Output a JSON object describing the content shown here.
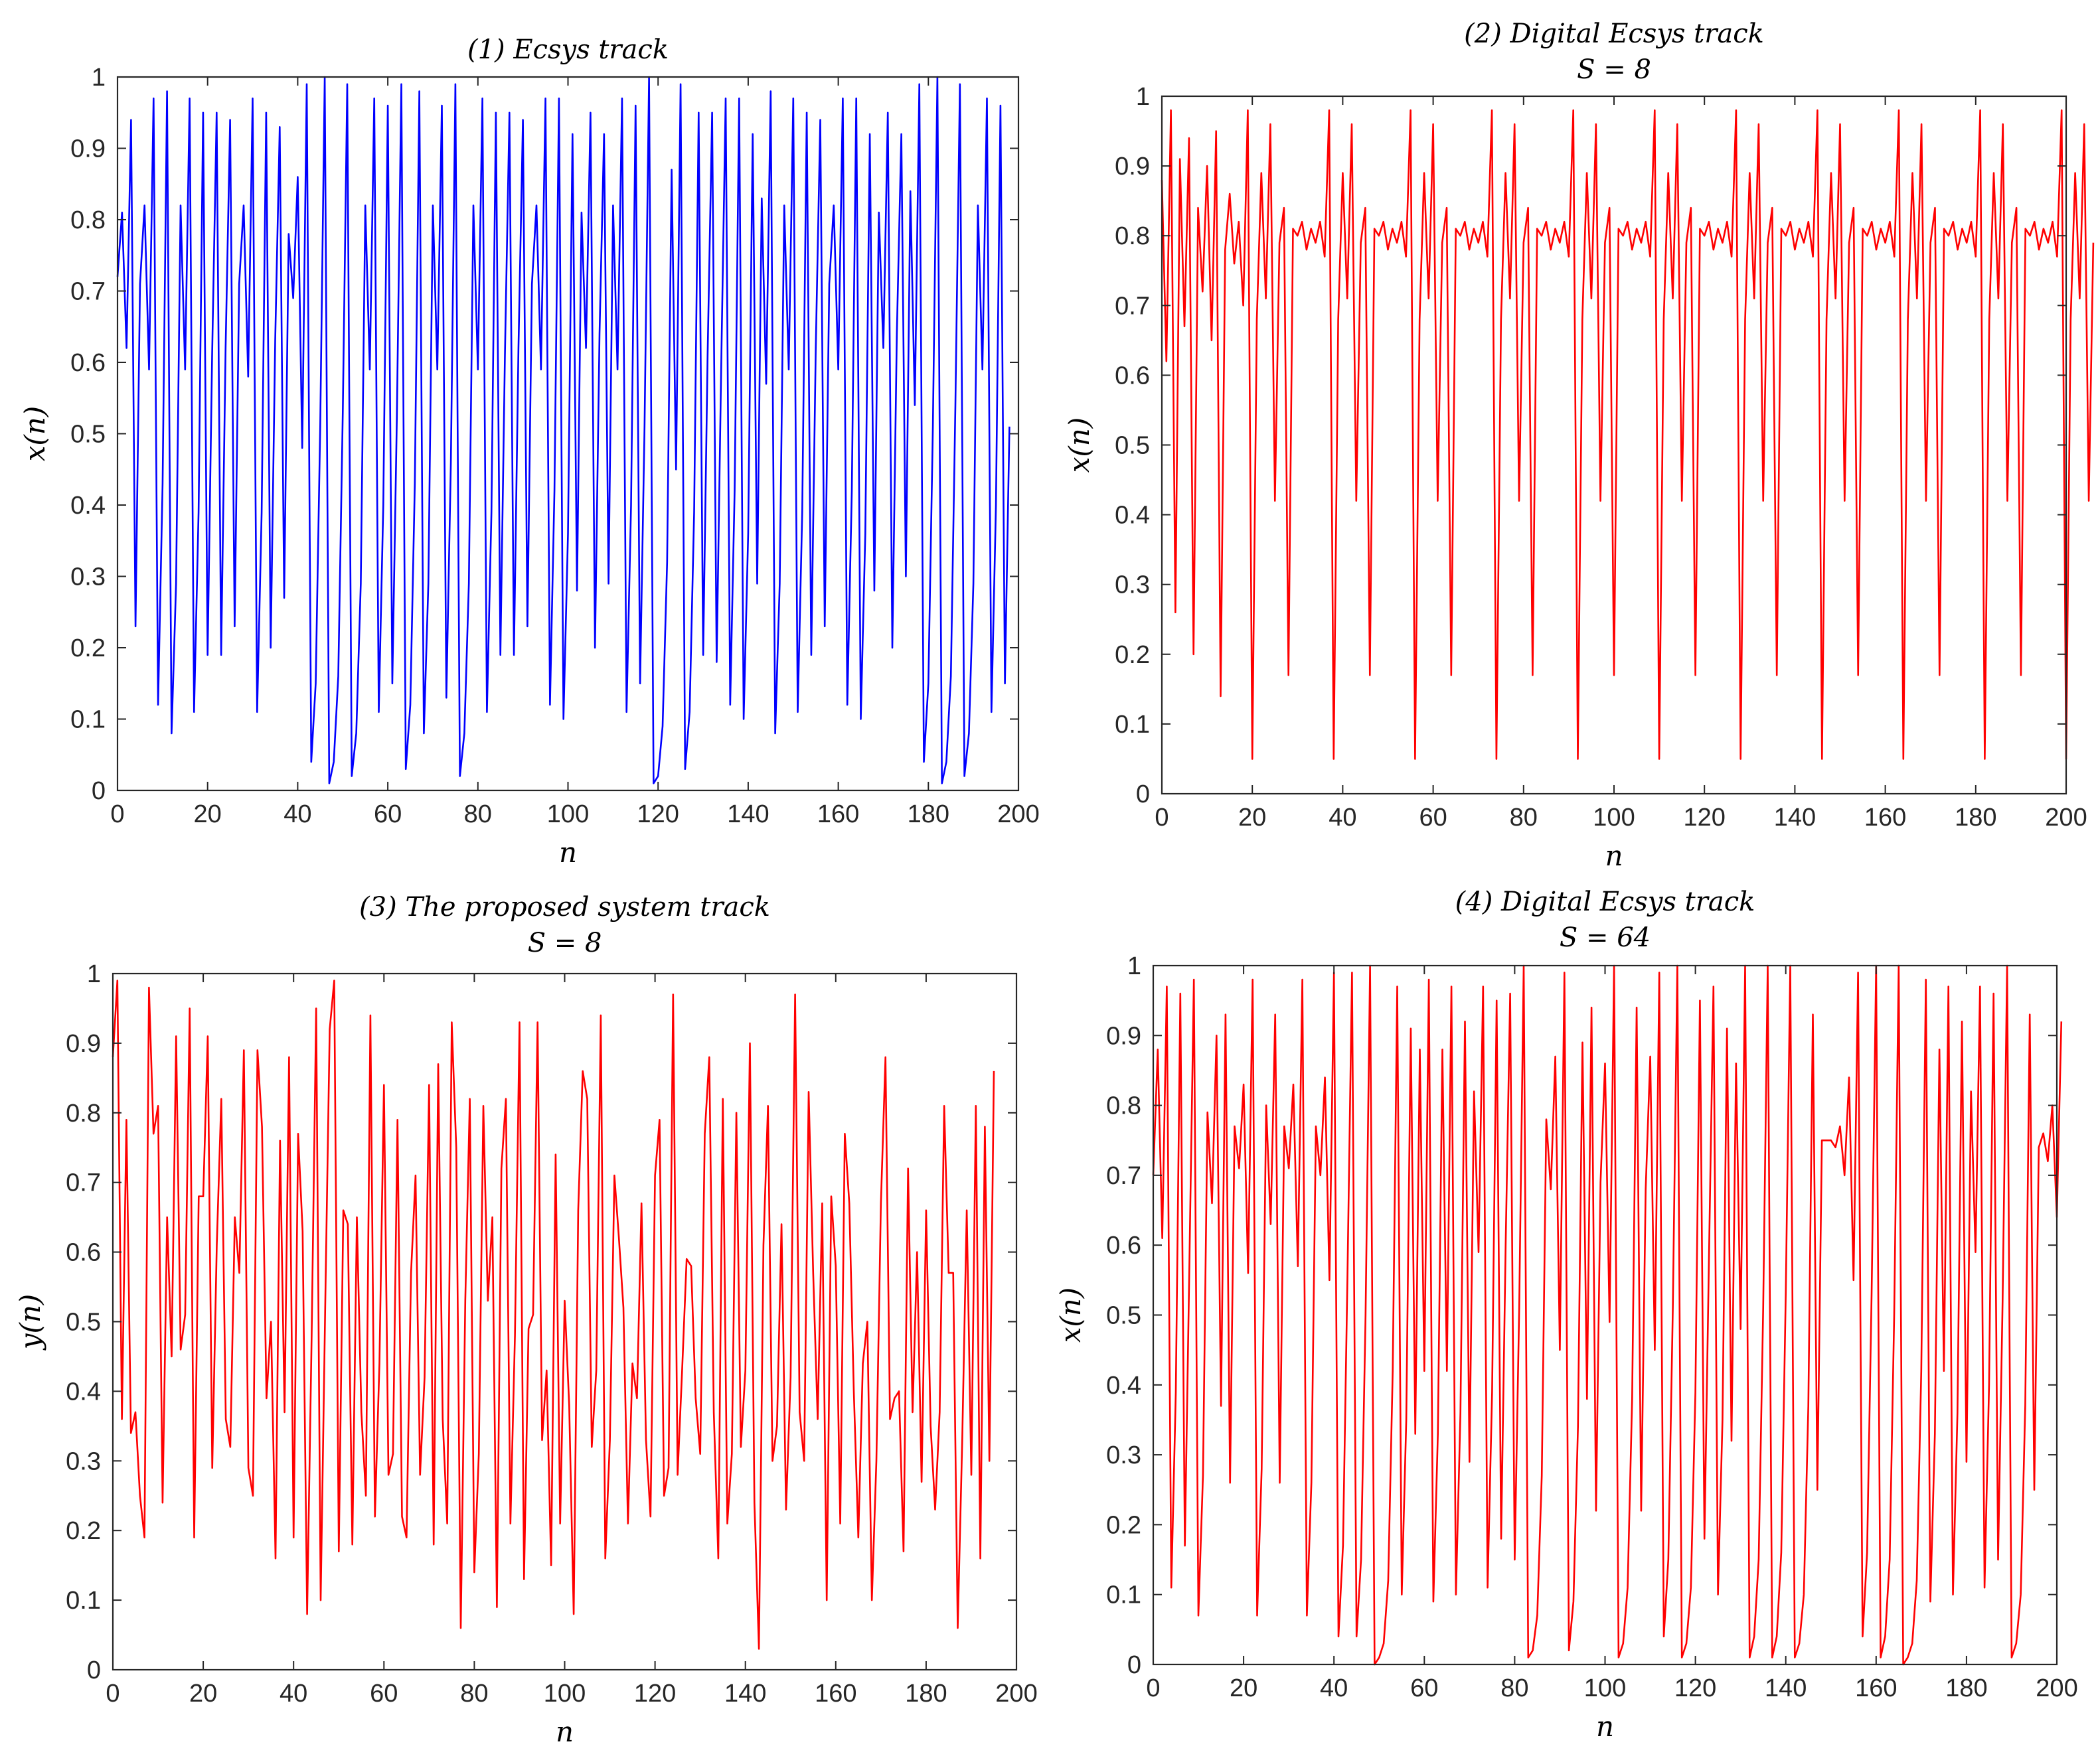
{
  "chart_data": [
    {
      "id": "p1",
      "type": "line",
      "title_lines": [
        "(1)   Ecsys   track"
      ],
      "xlabel": "n",
      "ylabel": "x(n)",
      "xlim": [
        0,
        200
      ],
      "ylim": [
        0,
        1
      ],
      "xticks": [
        0,
        20,
        40,
        60,
        80,
        100,
        120,
        140,
        160,
        180,
        200
      ],
      "yticks": [
        0,
        0.1,
        0.2,
        0.3,
        0.4,
        0.5,
        0.6,
        0.7,
        0.8,
        0.9,
        1
      ],
      "line_color": "#0000ff",
      "series": [
        {
          "name": "Ecsys",
          "x_start": 0,
          "values": [
            0.72,
            0.81,
            0.62,
            0.94,
            0.23,
            0.71,
            0.82,
            0.59,
            0.97,
            0.12,
            0.43,
            0.98,
            0.08,
            0.29,
            0.82,
            0.59,
            0.97,
            0.11,
            0.39,
            0.95,
            0.19,
            0.61,
            0.95,
            0.19,
            0.62,
            0.94,
            0.23,
            0.71,
            0.82,
            0.58,
            0.97,
            0.11,
            0.39,
            0.95,
            0.2,
            0.63,
            0.93,
            0.27,
            0.78,
            0.69,
            0.86,
            0.48,
            0.99,
            0.04,
            0.15,
            0.51,
            1.0,
            0.01,
            0.04,
            0.16,
            0.53,
            0.99,
            0.02,
            0.08,
            0.29,
            0.82,
            0.59,
            0.97,
            0.11,
            0.4,
            0.96,
            0.15,
            0.52,
            0.99,
            0.03,
            0.12,
            0.43,
            0.98,
            0.08,
            0.29,
            0.82,
            0.59,
            0.96,
            0.13,
            0.46,
            0.99,
            0.02,
            0.08,
            0.29,
            0.82,
            0.59,
            0.97,
            0.11,
            0.39,
            0.95,
            0.19,
            0.61,
            0.95,
            0.19,
            0.62,
            0.94,
            0.23,
            0.71,
            0.82,
            0.59,
            0.97,
            0.12,
            0.42,
            0.97,
            0.1,
            0.36,
            0.92,
            0.28,
            0.81,
            0.62,
            0.95,
            0.2,
            0.64,
            0.92,
            0.29,
            0.82,
            0.59,
            0.97,
            0.11,
            0.4,
            0.96,
            0.15,
            0.51,
            1.0,
            0.01,
            0.02,
            0.09,
            0.32,
            0.87,
            0.45,
            0.99,
            0.03,
            0.11,
            0.39,
            0.95,
            0.19,
            0.61,
            0.95,
            0.18,
            0.59,
            0.97,
            0.12,
            0.42,
            0.97,
            0.1,
            0.36,
            0.92,
            0.29,
            0.83,
            0.57,
            0.98,
            0.08,
            0.29,
            0.82,
            0.59,
            0.97,
            0.11,
            0.39,
            0.95,
            0.19,
            0.62,
            0.94,
            0.23,
            0.71,
            0.82,
            0.59,
            0.97,
            0.12,
            0.42,
            0.97,
            0.1,
            0.36,
            0.92,
            0.28,
            0.81,
            0.62,
            0.95,
            0.2,
            0.64,
            0.92,
            0.3,
            0.84,
            0.54,
            0.99,
            0.04,
            0.15,
            0.51,
            1.0,
            0.01,
            0.04,
            0.16,
            0.54,
            0.99,
            0.02,
            0.08,
            0.29,
            0.82,
            0.59,
            0.97,
            0.11,
            0.4,
            0.96,
            0.15,
            0.51
          ]
        }
      ]
    },
    {
      "id": "p2",
      "type": "line",
      "title_lines": [
        "(2)   Digital   Ecsys   track",
        "S = 8"
      ],
      "xlabel": "n",
      "ylabel": "x(n)",
      "xlim": [
        0,
        200
      ],
      "ylim": [
        0,
        1
      ],
      "xticks": [
        0,
        20,
        40,
        60,
        80,
        100,
        120,
        140,
        160,
        180,
        200
      ],
      "yticks": [
        0,
        0.1,
        0.2,
        0.3,
        0.4,
        0.5,
        0.6,
        0.7,
        0.8,
        0.9,
        1
      ],
      "line_color": "#ff0000",
      "series": [
        {
          "name": "Digital Ecsys S=8",
          "x_start": 0,
          "values": [
            0.88,
            0.62,
            0.98,
            0.26,
            0.91,
            0.67,
            0.94,
            0.2,
            0.84,
            0.72,
            0.9,
            0.65,
            0.95,
            0.14,
            0.78,
            0.86,
            0.76,
            0.82,
            0.7,
            0.98,
            0.05,
            0.68,
            0.89,
            0.71,
            0.96,
            0.42,
            0.79,
            0.84,
            0.17,
            0.81,
            0.8,
            0.82,
            0.78,
            0.81,
            0.79,
            0.82,
            0.77,
            0.98,
            0.05,
            0.68,
            0.89,
            0.71,
            0.96,
            0.42,
            0.79,
            0.84,
            0.17,
            0.81,
            0.8,
            0.82,
            0.78,
            0.81,
            0.79,
            0.82,
            0.77,
            0.98,
            0.05,
            0.68,
            0.89,
            0.71,
            0.96,
            0.42,
            0.79,
            0.84,
            0.17,
            0.81,
            0.8,
            0.82,
            0.78,
            0.81,
            0.79,
            0.82,
            0.77,
            0.98,
            0.05,
            0.68,
            0.89,
            0.71,
            0.96,
            0.42,
            0.79,
            0.84,
            0.17,
            0.81,
            0.8,
            0.82,
            0.78,
            0.81,
            0.79,
            0.82,
            0.77,
            0.98,
            0.05,
            0.68,
            0.89,
            0.71,
            0.96,
            0.42,
            0.79,
            0.84,
            0.17,
            0.81,
            0.8,
            0.82,
            0.78,
            0.81,
            0.79,
            0.82,
            0.77,
            0.98,
            0.05,
            0.68,
            0.89,
            0.71,
            0.96,
            0.42,
            0.79,
            0.84,
            0.17,
            0.81,
            0.8,
            0.82,
            0.78,
            0.81,
            0.79,
            0.82,
            0.77,
            0.98,
            0.05,
            0.68,
            0.89,
            0.71,
            0.96,
            0.42,
            0.79,
            0.84,
            0.17,
            0.81,
            0.8,
            0.82,
            0.78,
            0.81,
            0.79,
            0.82,
            0.77,
            0.98,
            0.05,
            0.68,
            0.89,
            0.71,
            0.96,
            0.42,
            0.79,
            0.84,
            0.17,
            0.81,
            0.8,
            0.82,
            0.78,
            0.81,
            0.79,
            0.82,
            0.77,
            0.98,
            0.05,
            0.68,
            0.89,
            0.71,
            0.96,
            0.42,
            0.79,
            0.84,
            0.17,
            0.81,
            0.8,
            0.82,
            0.78,
            0.81,
            0.79,
            0.82,
            0.77,
            0.98,
            0.05,
            0.68,
            0.89,
            0.71,
            0.96,
            0.42,
            0.79,
            0.84,
            0.17,
            0.81,
            0.8,
            0.82,
            0.78,
            0.81,
            0.79,
            0.82,
            0.77,
            0.98,
            0.05,
            0.68,
            0.89,
            0.71,
            0.96,
            0.42,
            0.79
          ]
        }
      ]
    },
    {
      "id": "p3",
      "type": "line",
      "title_lines": [
        "(3)   The   proposed   system   track",
        "S = 8"
      ],
      "xlabel": "n",
      "ylabel": "y(n)",
      "xlim": [
        0,
        200
      ],
      "ylim": [
        0,
        1
      ],
      "xticks": [
        0,
        20,
        40,
        60,
        80,
        100,
        120,
        140,
        160,
        180,
        200
      ],
      "yticks": [
        0,
        0.1,
        0.2,
        0.3,
        0.4,
        0.5,
        0.6,
        0.7,
        0.8,
        0.9,
        1
      ],
      "line_color": "#ff0000",
      "series": [
        {
          "name": "Proposed system S=8",
          "x_start": 0,
          "values": [
            0.88,
            0.99,
            0.36,
            0.79,
            0.34,
            0.37,
            0.25,
            0.19,
            0.98,
            0.77,
            0.81,
            0.24,
            0.65,
            0.45,
            0.91,
            0.46,
            0.51,
            0.95,
            0.19,
            0.68,
            0.68,
            0.91,
            0.29,
            0.61,
            0.82,
            0.36,
            0.32,
            0.65,
            0.57,
            0.89,
            0.29,
            0.25,
            0.89,
            0.78,
            0.39,
            0.5,
            0.16,
            0.76,
            0.37,
            0.88,
            0.19,
            0.77,
            0.63,
            0.08,
            0.48,
            0.95,
            0.1,
            0.52,
            0.92,
            0.99,
            0.17,
            0.66,
            0.64,
            0.18,
            0.65,
            0.37,
            0.25,
            0.94,
            0.22,
            0.44,
            0.84,
            0.28,
            0.31,
            0.79,
            0.22,
            0.19,
            0.57,
            0.71,
            0.28,
            0.42,
            0.84,
            0.18,
            0.87,
            0.36,
            0.21,
            0.93,
            0.75,
            0.06,
            0.53,
            0.82,
            0.14,
            0.31,
            0.81,
            0.53,
            0.65,
            0.09,
            0.72,
            0.82,
            0.21,
            0.48,
            0.93,
            0.13,
            0.49,
            0.51,
            0.93,
            0.33,
            0.43,
            0.15,
            0.74,
            0.21,
            0.53,
            0.38,
            0.08,
            0.66,
            0.86,
            0.82,
            0.32,
            0.43,
            0.94,
            0.16,
            0.33,
            0.71,
            0.62,
            0.52,
            0.21,
            0.44,
            0.39,
            0.67,
            0.33,
            0.22,
            0.71,
            0.79,
            0.25,
            0.29,
            0.97,
            0.28,
            0.43,
            0.59,
            0.58,
            0.39,
            0.31,
            0.77,
            0.88,
            0.37,
            0.16,
            0.82,
            0.21,
            0.31,
            0.8,
            0.32,
            0.43,
            0.9,
            0.24,
            0.03,
            0.61,
            0.81,
            0.3,
            0.35,
            0.64,
            0.23,
            0.42,
            0.97,
            0.37,
            0.3,
            0.83,
            0.57,
            0.36,
            0.67,
            0.1,
            0.68,
            0.58,
            0.21,
            0.77,
            0.67,
            0.4,
            0.19,
            0.44,
            0.5,
            0.1,
            0.3,
            0.67,
            0.88,
            0.36,
            0.39,
            0.4,
            0.17,
            0.72,
            0.37,
            0.6,
            0.27,
            0.66,
            0.35,
            0.23,
            0.37,
            0.81,
            0.57,
            0.57,
            0.06,
            0.33,
            0.66,
            0.28,
            0.81,
            0.16,
            0.78,
            0.3,
            0.86
          ]
        }
      ]
    },
    {
      "id": "p4",
      "type": "line",
      "title_lines": [
        "(4)   Digital   Ecsys   track",
        "S = 64"
      ],
      "xlabel": "n",
      "ylabel": "x(n)",
      "xlim": [
        0,
        200
      ],
      "ylim": [
        0,
        1
      ],
      "xticks": [
        0,
        20,
        40,
        60,
        80,
        100,
        120,
        140,
        160,
        180,
        200
      ],
      "yticks": [
        0,
        0.1,
        0.2,
        0.3,
        0.4,
        0.5,
        0.6,
        0.7,
        0.8,
        0.9,
        1
      ],
      "line_color": "#ff0000",
      "series": [
        {
          "name": "Digital Ecsys S=64",
          "x_start": 0,
          "values": [
            0.7,
            0.88,
            0.61,
            0.97,
            0.11,
            0.39,
            0.96,
            0.17,
            0.57,
            0.98,
            0.07,
            0.27,
            0.79,
            0.66,
            0.9,
            0.37,
            0.93,
            0.26,
            0.77,
            0.71,
            0.83,
            0.56,
            0.98,
            0.07,
            0.28,
            0.8,
            0.63,
            0.93,
            0.26,
            0.77,
            0.71,
            0.83,
            0.57,
            0.98,
            0.07,
            0.26,
            0.77,
            0.7,
            0.84,
            0.55,
            0.99,
            0.04,
            0.17,
            0.56,
            0.99,
            0.04,
            0.15,
            0.5,
            1.0,
            0.0,
            0.01,
            0.03,
            0.12,
            0.42,
            0.97,
            0.1,
            0.35,
            0.91,
            0.33,
            0.88,
            0.42,
            0.98,
            0.09,
            0.33,
            0.88,
            0.42,
            0.97,
            0.1,
            0.36,
            0.92,
            0.29,
            0.82,
            0.59,
            0.97,
            0.11,
            0.39,
            0.95,
            0.18,
            0.6,
            0.96,
            0.15,
            0.51,
            1.0,
            0.01,
            0.02,
            0.07,
            0.27,
            0.78,
            0.68,
            0.87,
            0.45,
            0.99,
            0.02,
            0.09,
            0.34,
            0.89,
            0.38,
            0.94,
            0.22,
            0.69,
            0.86,
            0.49,
            1.0,
            0.01,
            0.03,
            0.11,
            0.38,
            0.94,
            0.22,
            0.68,
            0.87,
            0.45,
            0.99,
            0.04,
            0.15,
            0.51,
            1.0,
            0.01,
            0.03,
            0.11,
            0.39,
            0.95,
            0.18,
            0.58,
            0.97,
            0.1,
            0.35,
            0.91,
            0.32,
            0.86,
            0.48,
            1.0,
            0.01,
            0.04,
            0.15,
            0.51,
            1.0,
            0.01,
            0.04,
            0.16,
            0.53,
            1.0,
            0.01,
            0.03,
            0.1,
            0.37,
            0.93,
            0.25,
            0.75,
            0.75,
            0.75,
            0.74,
            0.77,
            0.7,
            0.84,
            0.55,
            0.99,
            0.04,
            0.16,
            0.53,
            1.0,
            0.01,
            0.04,
            0.15,
            0.5,
            1.0,
            0.0,
            0.01,
            0.03,
            0.12,
            0.42,
            0.98,
            0.09,
            0.33,
            0.88,
            0.42,
            0.97,
            0.1,
            0.36,
            0.92,
            0.29,
            0.82,
            0.59,
            0.97,
            0.11,
            0.4,
            0.96,
            0.15,
            0.52,
            1.0,
            0.01,
            0.03,
            0.1,
            0.37,
            0.93,
            0.25,
            0.74,
            0.76,
            0.72,
            0.8,
            0.64,
            0.92
          ]
        }
      ]
    }
  ]
}
